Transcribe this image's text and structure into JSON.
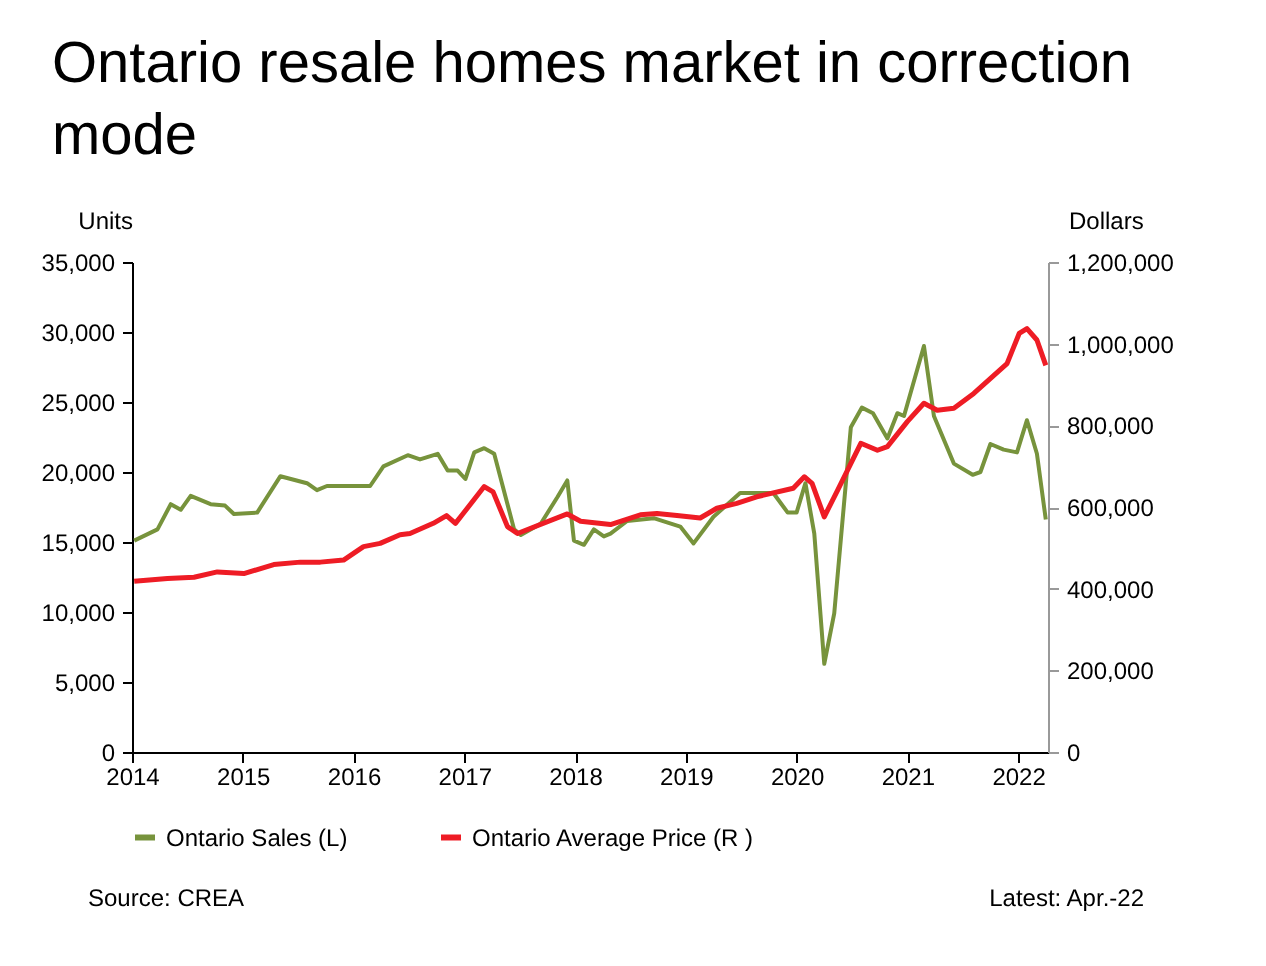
{
  "chart_data": {
    "type": "line",
    "title": "Ontario resale homes market in correction mode",
    "ylabel": "Units",
    "y2label": "Dollars",
    "xlim": [
      2014,
      2022.27
    ],
    "xticks": [
      2014,
      2015,
      2016,
      2017,
      2018,
      2019,
      2020,
      2021,
      2022
    ],
    "ylim": [
      0,
      35000
    ],
    "yticks": [
      0,
      {
        "value": 5000,
        "label": "5,000"
      },
      {
        "value": 10000,
        "label": "10,000"
      },
      {
        "value": 15000,
        "label": "15,000"
      },
      {
        "value": 20000,
        "label": "20,000"
      },
      {
        "value": 25000,
        "label": "25,000"
      },
      {
        "value": 30000,
        "label": "30,000"
      },
      {
        "value": 35000,
        "label": "35,000"
      }
    ],
    "y2lim": [
      0,
      1200000
    ],
    "y2ticks": [
      0,
      {
        "value": 200000,
        "label": "200,000"
      },
      {
        "value": 400000,
        "label": "400,000"
      },
      {
        "value": 600000,
        "label": "600,000"
      },
      {
        "value": 800000,
        "label": "800,000"
      },
      {
        "value": 1000000,
        "label": "1,000,000"
      },
      {
        "value": 1200000,
        "label": "1,200,000"
      }
    ],
    "grid": false,
    "legend": "bottom",
    "marker": "none",
    "line_style": "solid",
    "annotations": [
      "Source: CREA",
      "Latest: Apr.-22"
    ],
    "series": [
      {
        "name": "Ontario Sales (L)",
        "color": "#77933c",
        "x": [
          2014.02,
          2014.23,
          2014.35,
          2014.44,
          2014.53,
          2014.71,
          2014.84,
          2014.92,
          2015.13,
          2015.34,
          2015.58,
          2015.67,
          2015.76,
          2016.15,
          2016.27,
          2016.49,
          2016.6,
          2016.76,
          2016.85,
          2016.94,
          2017.01,
          2017.09,
          2017.18,
          2017.27,
          2017.45,
          2017.51,
          2017.69,
          2017.84,
          2017.93,
          2017.99,
          2018.08,
          2018.17,
          2018.26,
          2018.32,
          2018.47,
          2018.71,
          2018.95,
          2019.07,
          2019.25,
          2019.49,
          2019.79,
          2019.92,
          2020.0,
          2020.08,
          2020.16,
          2020.25,
          2020.34,
          2020.49,
          2020.59,
          2020.69,
          2020.82,
          2020.91,
          2020.97,
          2021.15,
          2021.24,
          2021.42,
          2021.59,
          2021.66,
          2021.75,
          2021.87,
          2021.99,
          2022.08,
          2022.17,
          2022.25
        ],
        "values": [
          15100,
          15900,
          17700,
          17300,
          18300,
          17700,
          17600,
          17000,
          17100,
          19700,
          19200,
          18700,
          19000,
          19000,
          20400,
          21200,
          20900,
          21300,
          20100,
          20100,
          19500,
          21400,
          21700,
          21300,
          15900,
          15500,
          16300,
          18200,
          19400,
          15100,
          14800,
          15900,
          15400,
          15600,
          16500,
          16700,
          16100,
          14900,
          16800,
          18500,
          18500,
          17100,
          17100,
          19200,
          15600,
          6300,
          9900,
          23200,
          24600,
          24200,
          22400,
          24200,
          24000,
          29000,
          24000,
          20600,
          19800,
          20000,
          22000,
          21600,
          21400,
          23700,
          21300,
          16600
        ]
      },
      {
        "name": "Ontario Average Price (R )",
        "color": "#ee1c25",
        "axis": "y2",
        "x": [
          2014.02,
          2014.32,
          2014.56,
          2014.77,
          2015.01,
          2015.28,
          2015.52,
          2015.7,
          2015.91,
          2016.09,
          2016.24,
          2016.42,
          2016.51,
          2016.72,
          2016.84,
          2016.92,
          2016.99,
          2017.18,
          2017.26,
          2017.39,
          2017.48,
          2017.93,
          2018.05,
          2018.32,
          2018.59,
          2018.74,
          2018.92,
          2019.13,
          2019.28,
          2019.46,
          2019.64,
          2019.97,
          2020.07,
          2020.14,
          2020.25,
          2020.37,
          2020.58,
          2020.73,
          2020.82,
          2021.0,
          2021.15,
          2021.27,
          2021.42,
          2021.6,
          2021.9,
          2022.01,
          2022.08,
          2022.17,
          2022.25
        ],
        "values": [
          418000,
          425000,
          428000,
          441000,
          437000,
          459000,
          465000,
          465000,
          470000,
          503000,
          511000,
          532000,
          535000,
          560000,
          579000,
          560000,
          584000,
          650000,
          637000,
          552000,
          535000,
          583000,
          565000,
          557000,
          581000,
          584000,
          579000,
          573000,
          597000,
          609000,
          625000,
          646000,
          674000,
          658000,
          576000,
          641000,
          756000,
          739000,
          748000,
          809000,
          854000,
          837000,
          842000,
          878000,
          951000,
          1025000,
          1037000,
          1009000,
          947000
        ]
      }
    ]
  }
}
